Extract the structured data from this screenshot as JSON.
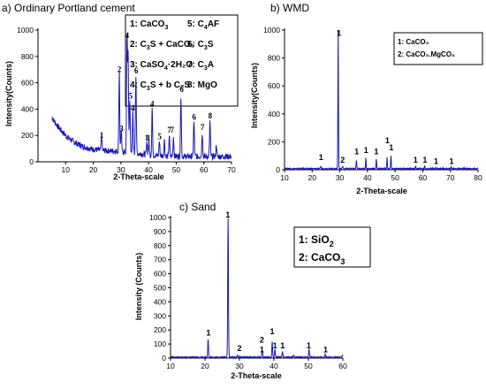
{
  "colors": {
    "trace": "#1a1ab8",
    "axis": "#000000"
  },
  "chart_data": [
    {
      "type": "line",
      "title": "a) Ordinary Portland cement",
      "xlabel": "2-Theta-scale",
      "ylabel": "Intensity(Counts)",
      "xlim": [
        0,
        70
      ],
      "ylim": [
        0,
        1000
      ],
      "xticks": [
        "10",
        "20",
        "30",
        "40",
        "50",
        "60",
        "70"
      ],
      "yticks": [
        "0",
        "200",
        "400",
        "600",
        "800",
        "1000"
      ],
      "legend": [
        {
          "num": "1:",
          "text": "CaCO",
          "sub": "3",
          "tail": ""
        },
        {
          "num": "5:",
          "text": "C",
          "sub": "4",
          "tail": "AF"
        },
        {
          "num": "2:",
          "text": "C",
          "sub": "3",
          "tail": "S + CaCO₃"
        },
        {
          "num": "6:",
          "text": "C",
          "sub": "3",
          "tail": "S"
        },
        {
          "num": "3:",
          "text": "CaSO",
          "sub": "4",
          "tail": "·2H₂O"
        },
        {
          "num": "7:",
          "text": "C",
          "sub": "3",
          "tail": "A"
        },
        {
          "num": "4:",
          "text": "C",
          "sub": "3",
          "tail": "S + b C₂S"
        },
        {
          "num": "8:",
          "text": "MgO",
          "sub": "",
          "tail": ""
        }
      ],
      "peak_labels": [
        {
          "label": "1",
          "x": 23.0,
          "y": 180
        },
        {
          "label": "2",
          "x": 29.4,
          "y": 680
        },
        {
          "label": "3",
          "x": 30.2,
          "y": 230
        },
        {
          "label": "4",
          "x": 32.2,
          "y": 940
        },
        {
          "label": "5",
          "x": 33.5,
          "y": 480
        },
        {
          "label": "4",
          "x": 34.3,
          "y": 390
        },
        {
          "label": "6",
          "x": 35.5,
          "y": 670
        },
        {
          "label": "1",
          "x": 39.3,
          "y": 160
        },
        {
          "label": "1",
          "x": 40.0,
          "y": 160
        },
        {
          "label": "4",
          "x": 41.3,
          "y": 420
        },
        {
          "label": "5",
          "x": 44.0,
          "y": 170
        },
        {
          "label": "7",
          "x": 47.5,
          "y": 220
        },
        {
          "label": "7",
          "x": 48.5,
          "y": 220
        },
        {
          "label": "6",
          "x": 52.0,
          "y": 530
        },
        {
          "label": "6",
          "x": 56.5,
          "y": 320
        },
        {
          "label": "7",
          "x": 59.5,
          "y": 240
        },
        {
          "label": "8",
          "x": 62.3,
          "y": 330
        }
      ],
      "peaks": [
        {
          "x": 23.0,
          "y": 110
        },
        {
          "x": 29.4,
          "y": 610
        },
        {
          "x": 30.1,
          "y": 160
        },
        {
          "x": 32.2,
          "y": 880
        },
        {
          "x": 32.6,
          "y": 720
        },
        {
          "x": 33.2,
          "y": 410
        },
        {
          "x": 34.3,
          "y": 310
        },
        {
          "x": 35.4,
          "y": 600
        },
        {
          "x": 39.4,
          "y": 100
        },
        {
          "x": 40.1,
          "y": 100
        },
        {
          "x": 41.3,
          "y": 360
        },
        {
          "x": 43.9,
          "y": 110
        },
        {
          "x": 45.7,
          "y": 130
        },
        {
          "x": 47.5,
          "y": 160
        },
        {
          "x": 49.0,
          "y": 150
        },
        {
          "x": 51.7,
          "y": 460
        },
        {
          "x": 56.4,
          "y": 260
        },
        {
          "x": 59.4,
          "y": 180
        },
        {
          "x": 62.2,
          "y": 270
        },
        {
          "x": 64.5,
          "y": 90
        }
      ]
    },
    {
      "type": "line",
      "title": "b) WMD",
      "xlabel": "2-Theta-scale",
      "ylabel": "Intensity(Counts)",
      "xlim": [
        10,
        80
      ],
      "ylim": [
        0,
        1000
      ],
      "xticks": [
        "10",
        "20",
        "30",
        "40",
        "50",
        "60",
        "70",
        "80"
      ],
      "yticks": [
        "0",
        "200",
        "400",
        "600",
        "800",
        "1000"
      ],
      "legend": [
        {
          "num": "1:",
          "text": "CaCO₃"
        },
        {
          "num": "2:",
          "text": "CaCO₃.MgCO₃"
        }
      ],
      "peak_labels": [
        {
          "label": "1",
          "x": 29.7,
          "y": 960
        },
        {
          "label": "1",
          "x": 23.2,
          "y": 70
        },
        {
          "label": "2",
          "x": 31.0,
          "y": 50
        },
        {
          "label": "1",
          "x": 36.1,
          "y": 110
        },
        {
          "label": "1",
          "x": 39.5,
          "y": 120
        },
        {
          "label": "1",
          "x": 43.2,
          "y": 110
        },
        {
          "label": "1",
          "x": 47.2,
          "y": 190
        },
        {
          "label": "1",
          "x": 48.6,
          "y": 140
        },
        {
          "label": "1",
          "x": 57.4,
          "y": 50
        },
        {
          "label": "1",
          "x": 60.8,
          "y": 50
        },
        {
          "label": "1",
          "x": 64.8,
          "y": 40
        },
        {
          "label": "1",
          "x": 70.4,
          "y": 40
        }
      ],
      "peaks": [
        {
          "x": 23.1,
          "y": 20
        },
        {
          "x": 29.4,
          "y": 1000
        },
        {
          "x": 31.0,
          "y": 20
        },
        {
          "x": 36.0,
          "y": 60
        },
        {
          "x": 39.4,
          "y": 80
        },
        {
          "x": 43.2,
          "y": 70
        },
        {
          "x": 47.1,
          "y": 80
        },
        {
          "x": 48.5,
          "y": 90
        },
        {
          "x": 57.4,
          "y": 15
        },
        {
          "x": 60.7,
          "y": 20
        },
        {
          "x": 64.7,
          "y": 10
        },
        {
          "x": 70.3,
          "y": 10
        }
      ]
    },
    {
      "type": "line",
      "title": "c) Sand",
      "xlabel": "2-Theta-scale",
      "ylabel": "Intensity (Counts)",
      "xlim": [
        10,
        60
      ],
      "ylim": [
        0,
        1000
      ],
      "xticks": [
        "10",
        "20",
        "30",
        "40",
        "50",
        "60"
      ],
      "yticks": [
        "0",
        "100",
        "200",
        "300",
        "400",
        "500",
        "600",
        "700",
        "800",
        "900",
        "1000"
      ],
      "legend": [
        {
          "num": "1:",
          "text": "SiO",
          "sub": "2"
        },
        {
          "num": "2:",
          "text": "CaCO",
          "sub": "3"
        }
      ],
      "peak_labels": [
        {
          "label": "1",
          "x": 21.0,
          "y": 160
        },
        {
          "label": "1",
          "x": 26.6,
          "y": 1000
        },
        {
          "label": "2",
          "x": 30.0,
          "y": 50
        },
        {
          "label": "2",
          "x": 36.5,
          "y": 110
        },
        {
          "label": "1",
          "x": 36.5,
          "y": 40
        },
        {
          "label": "1",
          "x": 39.5,
          "y": 170
        },
        {
          "label": "1",
          "x": 40.3,
          "y": 70
        },
        {
          "label": "1",
          "x": 42.5,
          "y": 70
        },
        {
          "label": "1",
          "x": 50.1,
          "y": 70
        },
        {
          "label": "1",
          "x": 55.0,
          "y": 40
        }
      ],
      "peaks": [
        {
          "x": 20.9,
          "y": 130
        },
        {
          "x": 26.7,
          "y": 1000
        },
        {
          "x": 29.4,
          "y": 15
        },
        {
          "x": 36.6,
          "y": 50
        },
        {
          "x": 39.5,
          "y": 110
        },
        {
          "x": 40.3,
          "y": 60
        },
        {
          "x": 42.5,
          "y": 40
        },
        {
          "x": 45.8,
          "y": 15
        },
        {
          "x": 50.2,
          "y": 60
        },
        {
          "x": 54.9,
          "y": 20
        },
        {
          "x": 59.9,
          "y": 15
        }
      ]
    }
  ]
}
